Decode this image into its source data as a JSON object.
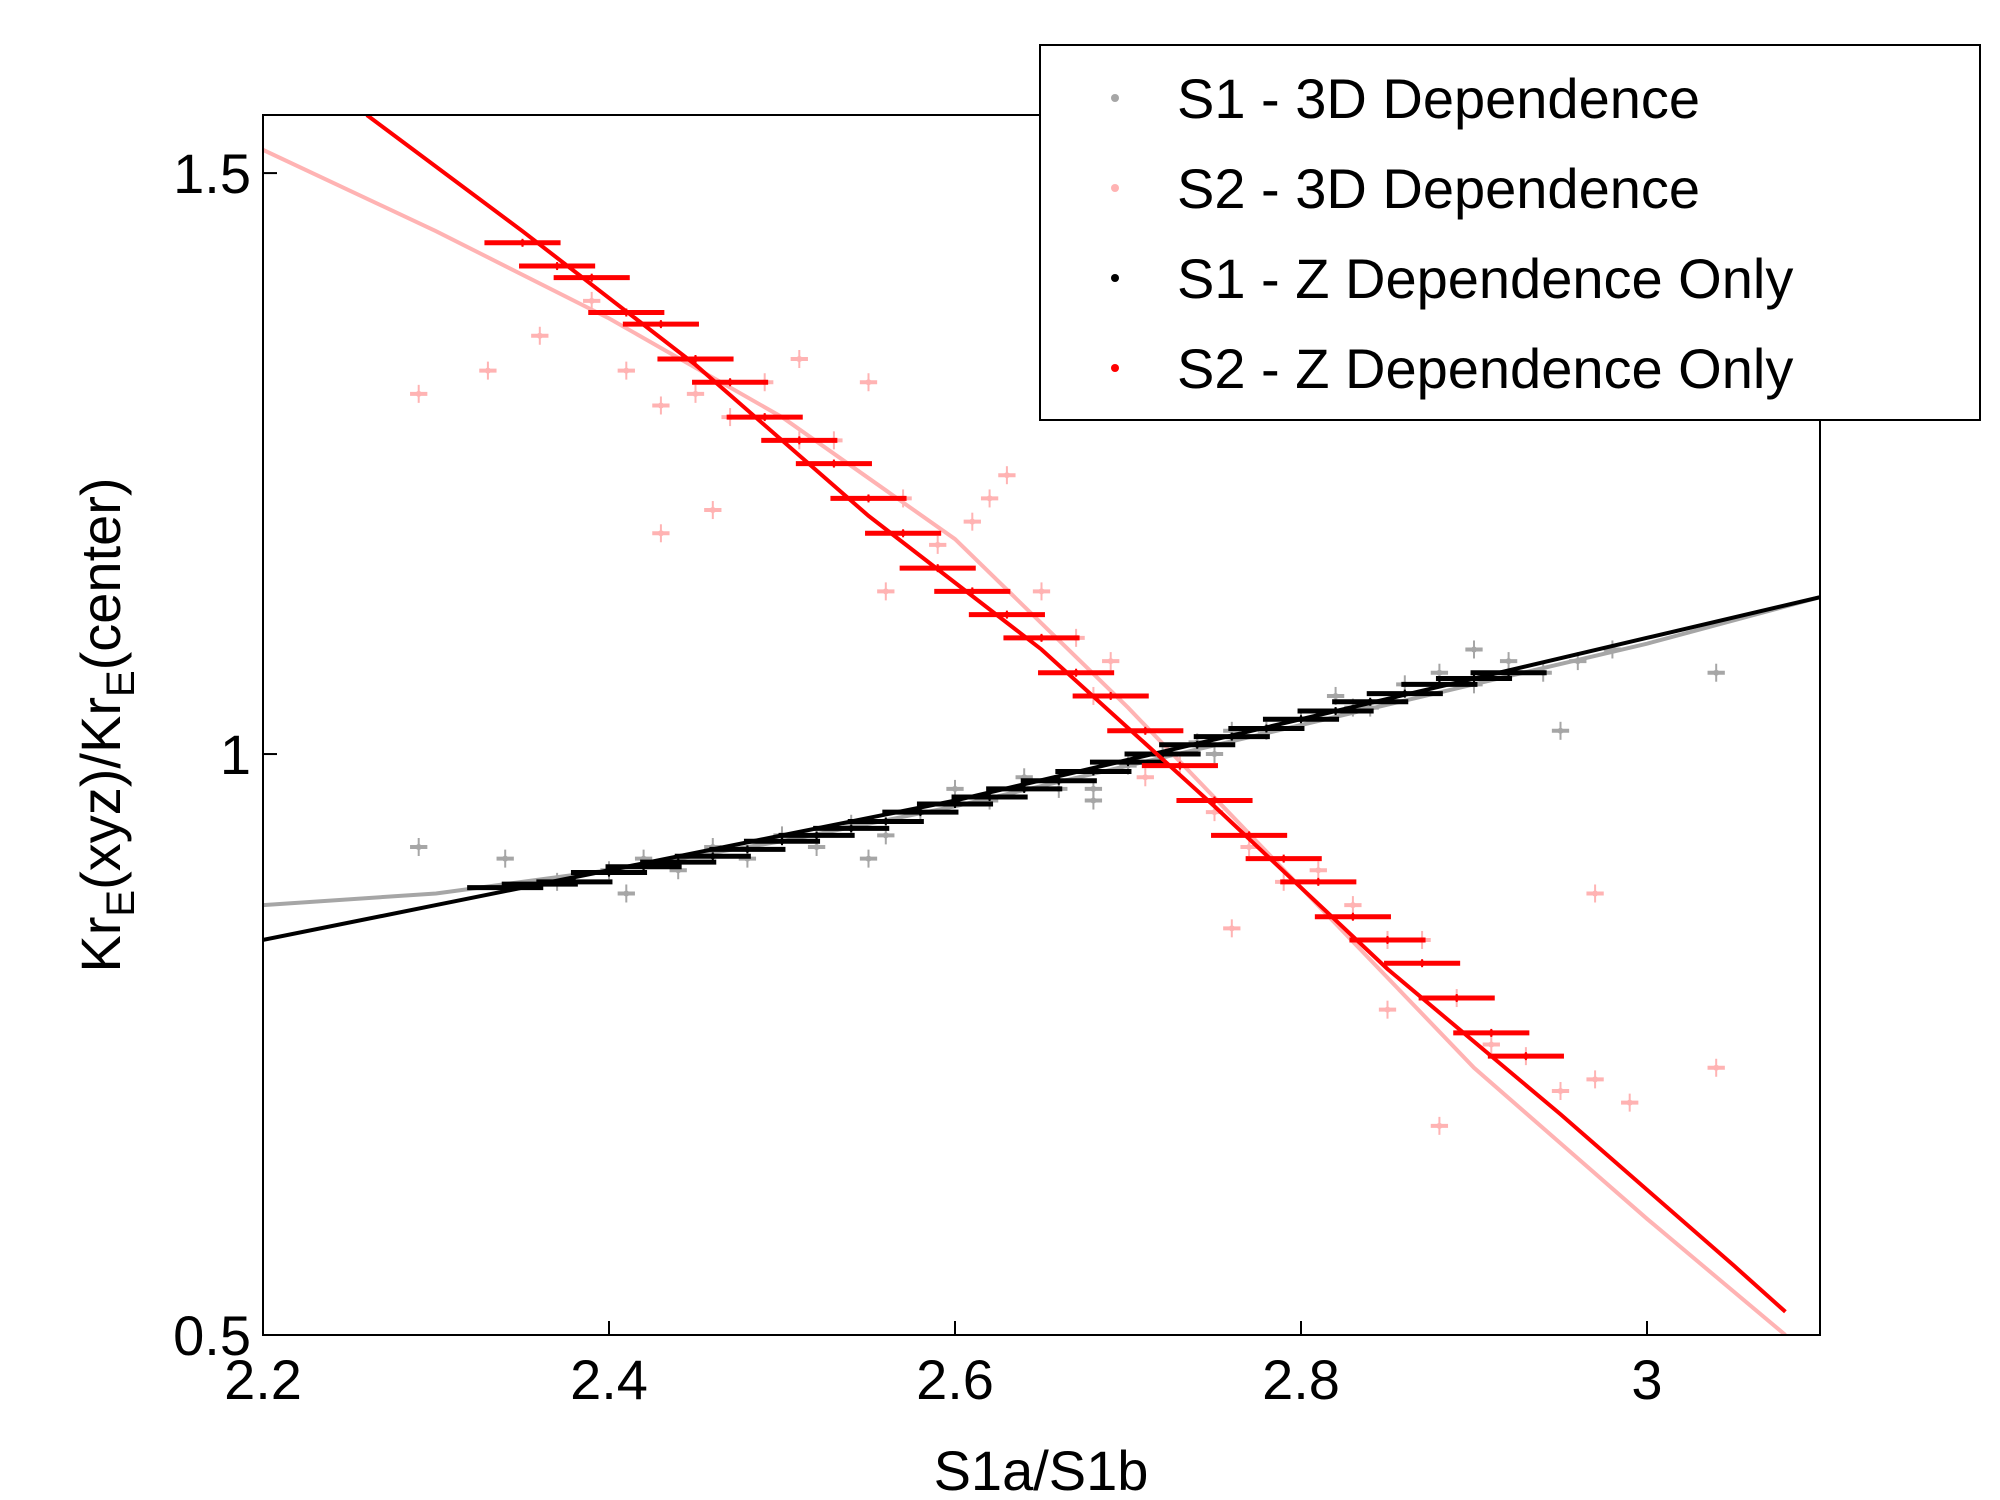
{
  "chart_data": {
    "type": "scatter",
    "xlabel": "S1a/S1b",
    "ylabel_main": "Kr",
    "ylabel_sub": "E",
    "ylabel_mid": "(xyz)/Kr",
    "ylabel_sub2": "E",
    "ylabel_tail": "(center)",
    "xlim": [
      2.2,
      3.1
    ],
    "ylim": [
      0.5,
      1.55
    ],
    "xticks": [
      2.2,
      2.4,
      2.6,
      2.8,
      3.0
    ],
    "xtick_labels": [
      "2.2",
      "2.4",
      "2.6",
      "2.8",
      "3"
    ],
    "yticks": [
      0.5,
      1.0,
      1.5
    ],
    "ytick_labels": [
      "0.5",
      "1",
      "1.5"
    ],
    "grid": false,
    "legend_position": "top-right",
    "legend": [
      {
        "label": "S1 - 3D Dependence",
        "color": "#a6a6a6"
      },
      {
        "label": "S2 - 3D Dependence",
        "color": "#ffb3b3"
      },
      {
        "label": "S1 - Z Dependence Only",
        "color": "#000000"
      },
      {
        "label": "S2 - Z Dependence Only",
        "color": "#ff0000"
      }
    ],
    "series": [
      {
        "name": "S1 - 3D Dependence",
        "kind": "points",
        "color": "#a6a6a6",
        "xerr": 0.005,
        "x": [
          2.29,
          2.34,
          2.37,
          2.4,
          2.42,
          2.44,
          2.46,
          2.48,
          2.5,
          2.52,
          2.54,
          2.56,
          2.58,
          2.6,
          2.62,
          2.64,
          2.66,
          2.68,
          2.7,
          2.72,
          2.74,
          2.76,
          2.78,
          2.8,
          2.82,
          2.84,
          2.86,
          2.88,
          2.9,
          2.92,
          2.94,
          2.96,
          2.98,
          3.04,
          2.95,
          2.41,
          2.55,
          2.68,
          2.75,
          2.83,
          2.9
        ],
        "y": [
          0.92,
          0.91,
          0.89,
          0.9,
          0.91,
          0.9,
          0.92,
          0.91,
          0.93,
          0.92,
          0.94,
          0.93,
          0.95,
          0.97,
          0.96,
          0.98,
          0.97,
          0.97,
          0.99,
          1.0,
          1.01,
          1.02,
          1.02,
          1.03,
          1.05,
          1.04,
          1.06,
          1.07,
          1.06,
          1.08,
          1.07,
          1.08,
          1.09,
          1.07,
          1.02,
          0.88,
          0.91,
          0.96,
          1.0,
          1.04,
          1.09
        ]
      },
      {
        "name": "S2 - 3D Dependence",
        "kind": "points",
        "color": "#ffb3b3",
        "xerr": 0.005,
        "x": [
          2.29,
          2.33,
          2.36,
          2.39,
          2.41,
          2.43,
          2.45,
          2.47,
          2.49,
          2.51,
          2.53,
          2.55,
          2.57,
          2.59,
          2.61,
          2.63,
          2.65,
          2.67,
          2.69,
          2.71,
          2.73,
          2.75,
          2.77,
          2.79,
          2.81,
          2.83,
          2.85,
          2.87,
          2.89,
          2.91,
          2.93,
          2.95,
          2.97,
          2.99,
          3.04,
          2.43,
          2.46,
          2.51,
          2.56,
          2.62,
          2.68,
          2.76,
          2.85,
          2.88,
          2.97
        ],
        "y": [
          1.31,
          1.33,
          1.36,
          1.39,
          1.33,
          1.3,
          1.31,
          1.29,
          1.32,
          1.34,
          1.27,
          1.32,
          1.22,
          1.18,
          1.2,
          1.24,
          1.14,
          1.1,
          1.08,
          0.98,
          0.99,
          0.95,
          0.92,
          0.89,
          0.9,
          0.87,
          0.84,
          0.84,
          0.79,
          0.75,
          0.74,
          0.71,
          0.72,
          0.7,
          0.73,
          1.19,
          1.21,
          1.27,
          1.14,
          1.22,
          1.05,
          0.85,
          0.78,
          0.68,
          0.88
        ]
      },
      {
        "name": "S1 - Z Dependence Only",
        "kind": "points",
        "color": "#000000",
        "xerr": 0.022,
        "x": [
          2.34,
          2.36,
          2.38,
          2.4,
          2.42,
          2.44,
          2.46,
          2.48,
          2.5,
          2.52,
          2.54,
          2.56,
          2.58,
          2.6,
          2.62,
          2.64,
          2.66,
          2.68,
          2.7,
          2.72,
          2.74,
          2.76,
          2.78,
          2.8,
          2.82,
          2.84,
          2.86,
          2.88,
          2.9,
          2.92
        ],
        "y": [
          0.885,
          0.888,
          0.89,
          0.898,
          0.903,
          0.907,
          0.912,
          0.918,
          0.925,
          0.93,
          0.936,
          0.942,
          0.95,
          0.957,
          0.963,
          0.97,
          0.977,
          0.985,
          0.993,
          1.0,
          1.008,
          1.015,
          1.022,
          1.03,
          1.037,
          1.045,
          1.052,
          1.06,
          1.065,
          1.07
        ]
      },
      {
        "name": "S2 - Z Dependence Only",
        "kind": "points",
        "color": "#ff0000",
        "xerr": 0.022,
        "x": [
          2.35,
          2.37,
          2.39,
          2.41,
          2.43,
          2.45,
          2.47,
          2.49,
          2.51,
          2.53,
          2.55,
          2.57,
          2.59,
          2.61,
          2.63,
          2.65,
          2.67,
          2.69,
          2.71,
          2.73,
          2.75,
          2.77,
          2.79,
          2.81,
          2.83,
          2.85,
          2.87,
          2.89,
          2.91,
          2.93
        ],
        "y": [
          1.44,
          1.42,
          1.41,
          1.38,
          1.37,
          1.34,
          1.32,
          1.29,
          1.27,
          1.25,
          1.22,
          1.19,
          1.16,
          1.14,
          1.12,
          1.1,
          1.07,
          1.05,
          1.02,
          0.99,
          0.96,
          0.93,
          0.91,
          0.89,
          0.86,
          0.84,
          0.82,
          0.79,
          0.76,
          0.74
        ]
      },
      {
        "name": "S1 - 3D Dependence",
        "kind": "line",
        "color": "#a6a6a6",
        "x": [
          2.2,
          2.3,
          2.4,
          2.5,
          2.6,
          2.7,
          2.8,
          2.9,
          3.0,
          3.1
        ],
        "y": [
          0.87,
          0.88,
          0.9,
          0.925,
          0.955,
          0.99,
          1.025,
          1.06,
          1.095,
          1.135
        ]
      },
      {
        "name": "S2 - 3D Dependence",
        "kind": "line",
        "color": "#ffb3b3",
        "x": [
          2.2,
          2.3,
          2.4,
          2.5,
          2.6,
          2.7,
          2.8,
          2.9,
          3.0,
          3.08
        ],
        "y": [
          1.52,
          1.45,
          1.375,
          1.29,
          1.185,
          1.04,
          0.885,
          0.73,
          0.6,
          0.5
        ]
      },
      {
        "name": "S1 - Z Dependence Only",
        "kind": "line",
        "color": "#000000",
        "x": [
          2.2,
          2.3,
          2.4,
          2.5,
          2.6,
          2.7,
          2.8,
          2.9,
          3.0,
          3.1
        ],
        "y": [
          0.84,
          0.87,
          0.9,
          0.93,
          0.96,
          0.995,
          1.03,
          1.065,
          1.1,
          1.135
        ]
      },
      {
        "name": "S2 - Z Dependence Only",
        "kind": "line",
        "color": "#ff0000",
        "x": [
          2.26,
          2.35,
          2.45,
          2.55,
          2.65,
          2.75,
          2.85,
          2.95,
          3.05,
          3.08
        ],
        "y": [
          1.55,
          1.45,
          1.335,
          1.205,
          1.09,
          0.955,
          0.815,
          0.69,
          0.56,
          0.52
        ]
      }
    ]
  }
}
